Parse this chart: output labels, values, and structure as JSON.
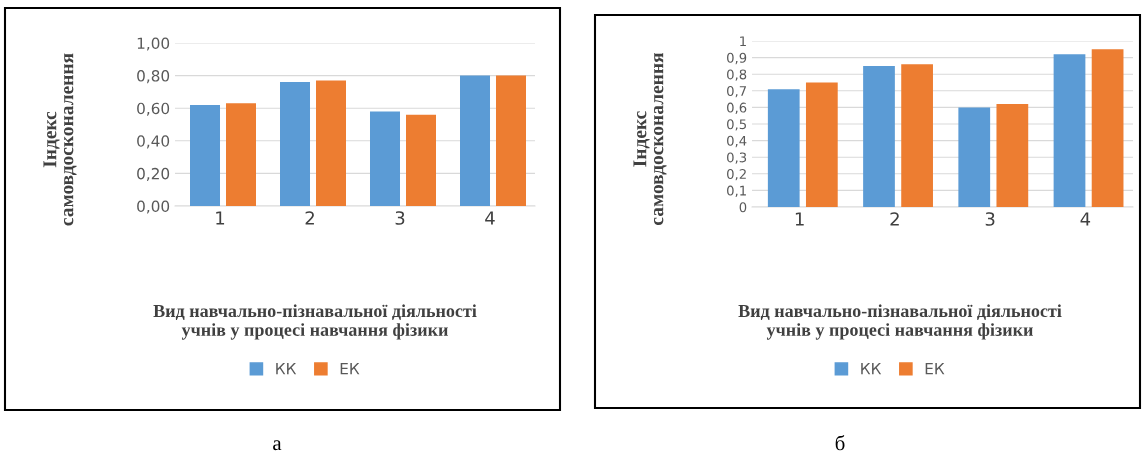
{
  "chart_data": [
    {
      "type": "bar",
      "categories": [
        "1",
        "2",
        "3",
        "4"
      ],
      "ylabel": "Індекс\nсамовдосконалення",
      "xlabel": "Вид навчально-пізнавальної діяльності\nучнів у процесі навчання фізики",
      "series": [
        {
          "name": "КК",
          "color": "#5b9bd5",
          "values": [
            0.62,
            0.76,
            0.58,
            0.8
          ]
        },
        {
          "name": "ЕК",
          "color": "#ed7d31",
          "values": [
            0.63,
            0.77,
            0.56,
            0.8
          ]
        }
      ],
      "ylim": [
        0,
        1
      ],
      "yticks": [
        {
          "value": 0,
          "label": "0,00"
        },
        {
          "value": 0.2,
          "label": "0,20"
        },
        {
          "value": 0.4,
          "label": "0,40"
        },
        {
          "value": 0.6,
          "label": "0,60"
        },
        {
          "value": 0.8,
          "label": "0,80"
        },
        {
          "value": 1,
          "label": "1,00"
        }
      ],
      "grid": "y",
      "legend": "bottom",
      "annotations": [
        "а"
      ]
    },
    {
      "type": "bar",
      "categories": [
        "1",
        "2",
        "3",
        "4"
      ],
      "ylabel": "Індекс\nсамовдосконалення",
      "xlabel": "Вид навчально-пізнавальної діяльності\nучнів у процесі навчання фізики",
      "series": [
        {
          "name": "КК",
          "color": "#5b9bd5",
          "values": [
            0.71,
            0.85,
            0.6,
            0.92
          ]
        },
        {
          "name": "ЕК",
          "color": "#ed7d31",
          "values": [
            0.75,
            0.86,
            0.62,
            0.95
          ]
        }
      ],
      "ylim": [
        0,
        1
      ],
      "yticks": [
        0,
        {
          "value": 0.1,
          "label": "0,1"
        },
        {
          "value": 0.2,
          "label": "0,2"
        },
        {
          "value": 0.3,
          "label": "0,3"
        },
        {
          "value": 0.4,
          "label": "0,4"
        },
        {
          "value": 0.5,
          "label": "0,5"
        },
        {
          "value": 0.6,
          "label": "0,6"
        },
        {
          "value": 0.7,
          "label": "0,7"
        },
        {
          "value": 0.8,
          "label": "0,8"
        },
        {
          "value": 0.9,
          "label": "0,9"
        },
        1
      ],
      "grid": "y",
      "legend": "bottom",
      "annotations": [
        "б"
      ]
    }
  ]
}
